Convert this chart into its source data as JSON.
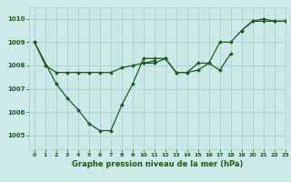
{
  "title": "Graphe pression niveau de la mer (hPa)",
  "bg_color": "#cce8e8",
  "grid_color": "#aacfcf",
  "line_color": "#1a5c1a",
  "xlim": [
    -0.5,
    23
  ],
  "ylim": [
    1004.4,
    1010.5
  ],
  "yticks": [
    1005,
    1006,
    1007,
    1008,
    1009,
    1010
  ],
  "xticks": [
    0,
    1,
    2,
    3,
    4,
    5,
    6,
    7,
    8,
    9,
    10,
    11,
    12,
    13,
    14,
    15,
    16,
    17,
    18,
    19,
    20,
    21,
    22,
    23
  ],
  "series": [
    {
      "x": [
        0,
        1
      ],
      "y": [
        1009.0,
        1008.0
      ]
    },
    {
      "x": [
        0,
        2,
        3,
        4,
        5,
        6,
        7,
        8,
        9,
        10,
        11,
        12,
        13,
        14,
        15,
        16,
        17,
        18
      ],
      "y": [
        1009.0,
        1007.2,
        1006.6,
        1006.1,
        1005.5,
        1005.2,
        1005.2,
        1006.3,
        1007.2,
        1008.3,
        1008.3,
        1008.3,
        1007.7,
        1007.7,
        1008.1,
        1008.1,
        1007.8,
        1008.5
      ]
    },
    {
      "x": [
        1,
        2,
        3,
        4,
        5,
        6,
        7,
        8,
        9,
        10,
        11
      ],
      "y": [
        1008.0,
        1007.7,
        1007.7,
        1007.7,
        1007.7,
        1007.7,
        1007.7,
        1007.9,
        1008.0,
        1008.1,
        1008.2
      ]
    },
    {
      "x": [
        10,
        11,
        12,
        13,
        14,
        15,
        16,
        17,
        18,
        19,
        20,
        21,
        22,
        23
      ],
      "y": [
        1008.1,
        1008.1,
        1008.3,
        1007.7,
        1007.7,
        1007.8,
        1008.1,
        1009.0,
        1009.0,
        1009.5,
        1009.9,
        1009.9,
        1009.9,
        1009.9
      ]
    },
    {
      "x": [
        19,
        20,
        21,
        22,
        23
      ],
      "y": [
        1009.5,
        1009.9,
        1010.0,
        1009.9,
        1009.9
      ]
    }
  ]
}
